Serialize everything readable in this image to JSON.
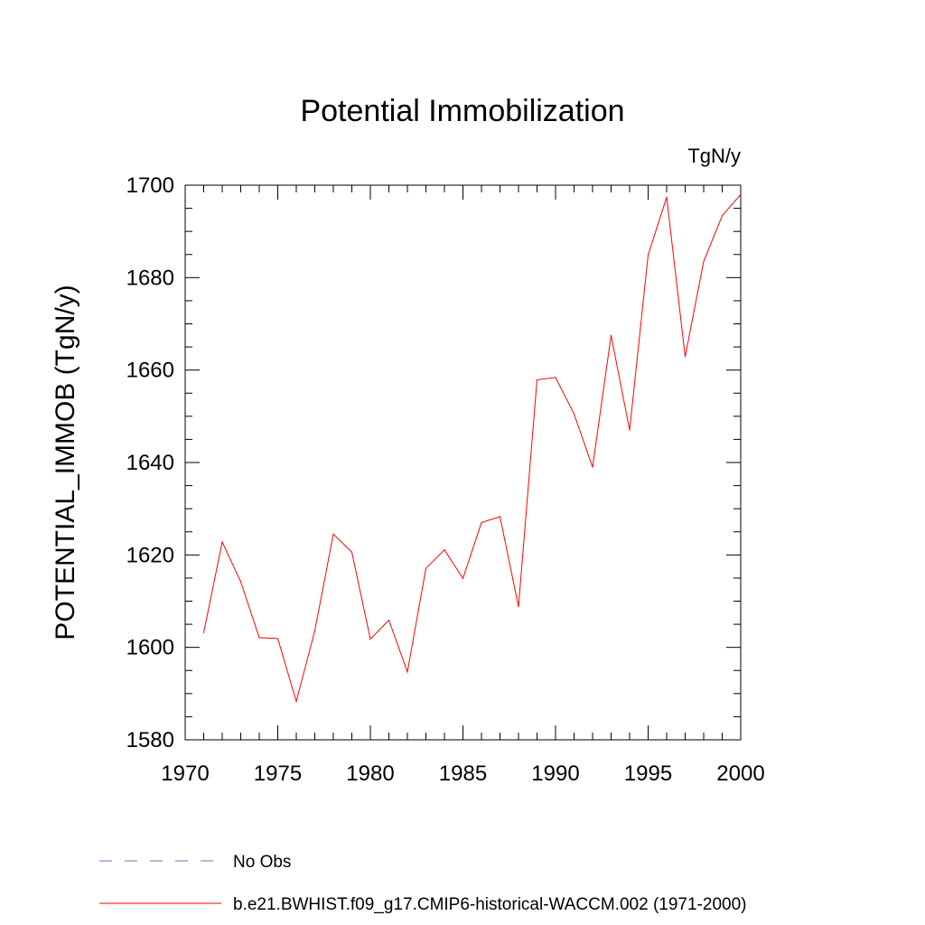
{
  "chart_data": {
    "type": "line",
    "title": "Potential Immobilization",
    "units_label": "TgN/y",
    "ylabel": "POTENTIAL_IMMOB  (TgN/y)",
    "xlabel": "",
    "xlim": [
      1970,
      2000
    ],
    "ylim": [
      1580,
      1700
    ],
    "x_ticks": [
      1970,
      1975,
      1980,
      1985,
      1990,
      1995,
      2000
    ],
    "y_ticks": [
      1580,
      1600,
      1620,
      1640,
      1660,
      1680,
      1700
    ],
    "grid": false,
    "series": [
      {
        "name": "b.e21.BWHIST.f09_g17.CMIP6-historical-WACCM.002 (1971-2000)",
        "color": "#ff0000",
        "x": [
          1971,
          1972,
          1973,
          1974,
          1975,
          1976,
          1977,
          1978,
          1979,
          1980,
          1981,
          1982,
          1983,
          1984,
          1985,
          1986,
          1987,
          1988,
          1989,
          1990,
          1991,
          1992,
          1993,
          1994,
          1995,
          1996,
          1997,
          1998,
          1999,
          2000
        ],
        "values": [
          1603.2,
          1622.8,
          1614.2,
          1602.1,
          1601.9,
          1588.3,
          1603.6,
          1624.5,
          1620.6,
          1601.8,
          1605.9,
          1594.7,
          1617.1,
          1621.1,
          1614.9,
          1627.0,
          1628.3,
          1608.8,
          1657.9,
          1658.4,
          1650.5,
          1639.0,
          1667.5,
          1647.0,
          1684.9,
          1697.4,
          1662.9,
          1683.5,
          1693.4,
          1698.0
        ]
      }
    ],
    "legend": {
      "placement": "bottom-left",
      "entries": [
        {
          "label": "No Obs",
          "color": "#7b68b8",
          "style": "dashed"
        },
        {
          "label": "b.e21.BWHIST.f09_g17.CMIP6-historical-WACCM.002 (1971-2000)",
          "color": "#ff0000",
          "style": "solid"
        }
      ]
    }
  }
}
